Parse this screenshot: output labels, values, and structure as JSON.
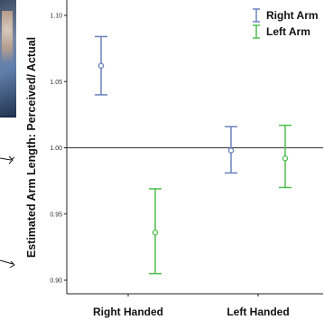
{
  "chart_data": {
    "type": "errorbar",
    "title": "",
    "ylabel": "Estimated Arm Length: Perceived/ Actual",
    "xlabel": "",
    "categories": [
      "Right Handed",
      "Left Handed"
    ],
    "ylim": [
      0.89,
      1.11
    ],
    "yticks": [
      "0.90",
      "0.95",
      "1.00",
      "1.05",
      "1.10"
    ],
    "reference_line": 1.0,
    "legend_position": "top-right",
    "grid": false,
    "series": [
      {
        "name": "Right Arm",
        "color": "#6b82be",
        "points": [
          {
            "category": "Right Handed",
            "mean": 1.062,
            "low": 1.04,
            "high": 1.084
          },
          {
            "category": "Left Handed",
            "mean": 0.998,
            "low": 0.981,
            "high": 1.016
          }
        ]
      },
      {
        "name": "Left Arm",
        "color": "#4fbe4f",
        "points": [
          {
            "category": "Right Handed",
            "mean": 0.936,
            "low": 0.905,
            "high": 0.969
          },
          {
            "category": "Left Handed",
            "mean": 0.992,
            "low": 0.97,
            "high": 1.017
          }
        ]
      }
    ]
  }
}
